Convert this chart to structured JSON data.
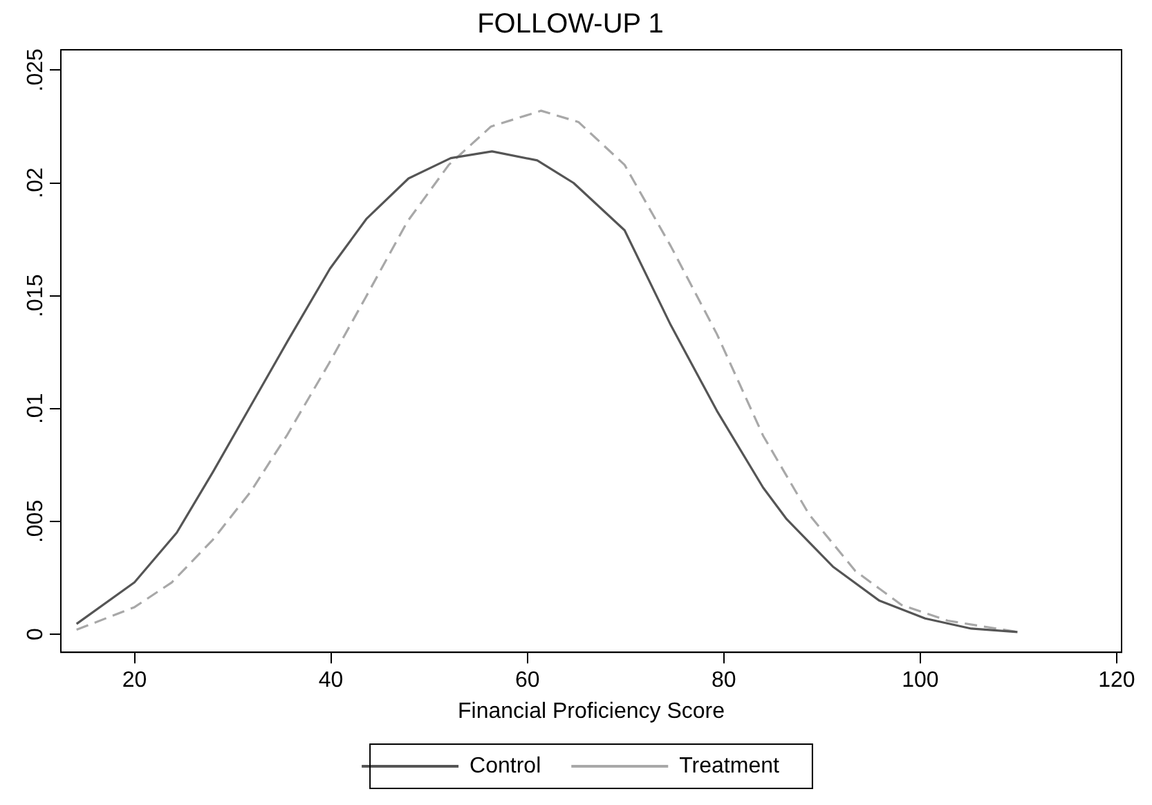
{
  "chart_data": {
    "type": "line",
    "title": "FOLLOW-UP 1",
    "xlabel": "Financial Proficiency Score",
    "xlim": [
      12.5,
      120.5
    ],
    "xticks": [
      20,
      40,
      60,
      80,
      100,
      120
    ],
    "ylim": [
      -0.0008,
      0.0259
    ],
    "yticks": [
      {
        "value": 0,
        "label": "0"
      },
      {
        "value": 0.005,
        "label": ".005"
      },
      {
        "value": 0.01,
        "label": ".01"
      },
      {
        "value": 0.015,
        "label": ".015"
      },
      {
        "value": 0.02,
        "label": ".02"
      },
      {
        "value": 0.025,
        "label": ".025"
      }
    ],
    "grid": false,
    "legend": "bottom",
    "marker": "none",
    "series": [
      {
        "name": "Control",
        "color": "#555555",
        "line_style": "solid",
        "x": [
          14.1,
          20,
          24.3,
          28,
          31.8,
          35.6,
          39.9,
          43.6,
          47.9,
          52.2,
          56.4,
          61,
          64.7,
          69.9,
          74.6,
          79.3,
          84,
          86.4,
          91.1,
          95.8,
          100.5,
          105.2,
          109.9
        ],
        "values": [
          0.00046,
          0.0023,
          0.0045,
          0.0072,
          0.0101,
          0.013,
          0.0162,
          0.0184,
          0.0202,
          0.0211,
          0.0214,
          0.021,
          0.02,
          0.0179,
          0.0137,
          0.0099,
          0.0065,
          0.0051,
          0.003,
          0.0015,
          0.0007,
          0.00025,
          0.0001
        ]
      },
      {
        "name": "Treatment",
        "color": "#a8a8a8",
        "line_style": "dashed",
        "x": [
          14.1,
          20,
          23.8,
          28,
          31.8,
          35.5,
          39.8,
          43.5,
          47.8,
          52,
          56.3,
          61.4,
          65.2,
          69.9,
          74.6,
          79.3,
          84,
          88.7,
          93.4,
          98.1,
          102.8,
          109.9
        ],
        "values": [
          0.0002,
          0.0012,
          0.0023,
          0.0042,
          0.0063,
          0.0088,
          0.012,
          0.0149,
          0.0183,
          0.0208,
          0.0225,
          0.0232,
          0.0227,
          0.0208,
          0.0172,
          0.0133,
          0.0088,
          0.0053,
          0.0028,
          0.0013,
          0.0006,
          0.0001
        ]
      }
    ]
  }
}
